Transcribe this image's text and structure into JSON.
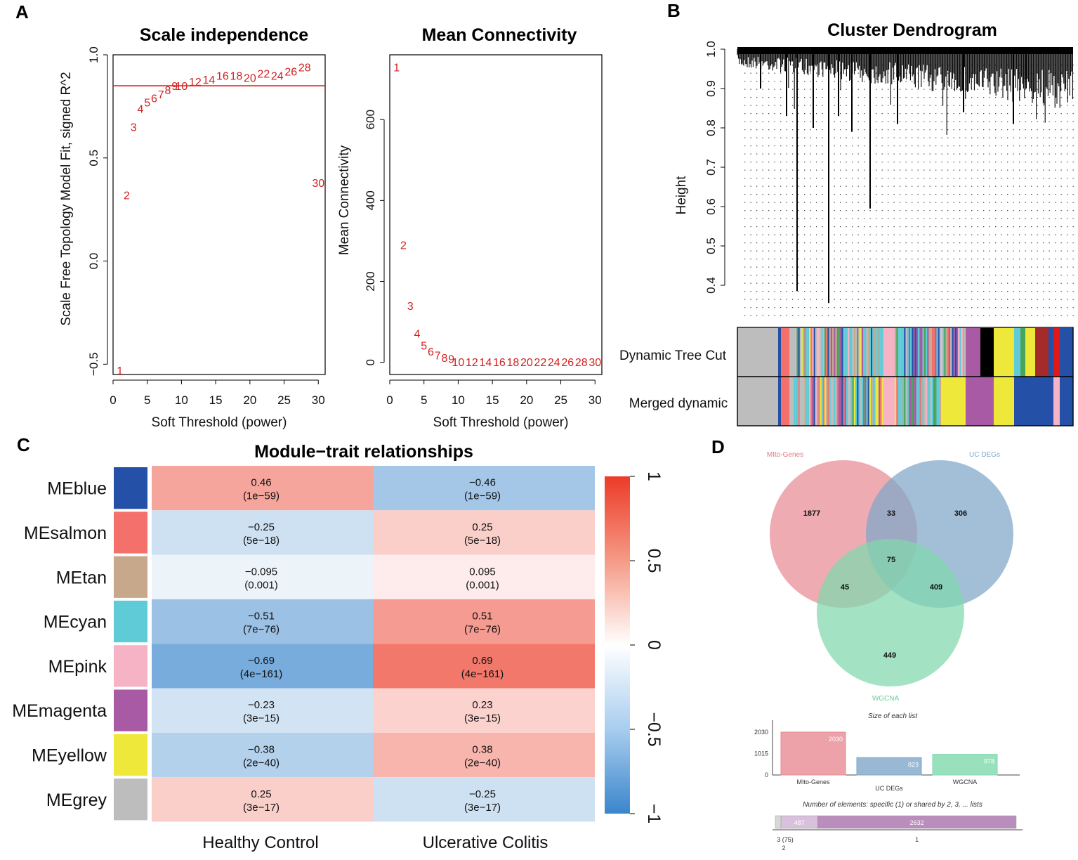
{
  "panels": {
    "a": "A",
    "b": "B",
    "c": "C",
    "d": "D"
  },
  "colors": {
    "red_line": "#e02424",
    "salmon": "#f4716b",
    "tan": "#c8a88a",
    "cyan": "#5ecbd6",
    "pink": "#f7b3c6",
    "magenta": "#a85aa5",
    "yellow": "#eee83a",
    "grey": "#bdbdbd",
    "blue": "#2450a8",
    "black": "#000000",
    "venn_mito": "#e88a94",
    "venn_uc": "#7ea6c8",
    "venn_wgcna": "#7fd8ac"
  },
  "chart_data": [
    {
      "id": "scale_independence",
      "type": "scatter",
      "title": "Scale independence",
      "xlabel": "Soft Threshold (power)",
      "ylabel": "Scale Free Topology Model Fit, signed R^2",
      "xlim": [
        0,
        31
      ],
      "ylim": [
        -0.55,
        1.0
      ],
      "xticks": [
        "0",
        "5",
        "10",
        "15",
        "20",
        "25",
        "30"
      ],
      "yticks": [
        "−0.5",
        "0.0",
        "0.5",
        "1.0"
      ],
      "hline": 0.85,
      "points": [
        {
          "x": 1,
          "y": -0.53,
          "label": "1"
        },
        {
          "x": 2,
          "y": 0.32,
          "label": "2"
        },
        {
          "x": 3,
          "y": 0.65,
          "label": "3"
        },
        {
          "x": 4,
          "y": 0.74,
          "label": "4"
        },
        {
          "x": 5,
          "y": 0.77,
          "label": "5"
        },
        {
          "x": 6,
          "y": 0.79,
          "label": "6"
        },
        {
          "x": 7,
          "y": 0.81,
          "label": "7"
        },
        {
          "x": 8,
          "y": 0.83,
          "label": "8"
        },
        {
          "x": 9,
          "y": 0.85,
          "label": "9"
        },
        {
          "x": 10,
          "y": 0.85,
          "label": "10"
        },
        {
          "x": 12,
          "y": 0.87,
          "label": "12"
        },
        {
          "x": 14,
          "y": 0.88,
          "label": "14"
        },
        {
          "x": 16,
          "y": 0.9,
          "label": "16"
        },
        {
          "x": 18,
          "y": 0.9,
          "label": "18"
        },
        {
          "x": 20,
          "y": 0.89,
          "label": "20"
        },
        {
          "x": 22,
          "y": 0.91,
          "label": "22"
        },
        {
          "x": 24,
          "y": 0.9,
          "label": "24"
        },
        {
          "x": 26,
          "y": 0.92,
          "label": "26"
        },
        {
          "x": 28,
          "y": 0.94,
          "label": "28"
        },
        {
          "x": 30,
          "y": 0.38,
          "label": "30"
        }
      ]
    },
    {
      "id": "mean_connectivity",
      "type": "scatter",
      "title": "Mean Connectivity",
      "xlabel": "Soft Threshold (power)",
      "ylabel": "Mean Connectivity",
      "xlim": [
        0,
        31
      ],
      "ylim": [
        -30,
        760
      ],
      "xticks": [
        "0",
        "5",
        "10",
        "15",
        "20",
        "25",
        "30"
      ],
      "yticks": [
        "0",
        "200",
        "400",
        "600"
      ],
      "points": [
        {
          "x": 1,
          "y": 730,
          "label": "1"
        },
        {
          "x": 2,
          "y": 290,
          "label": "2"
        },
        {
          "x": 3,
          "y": 140,
          "label": "3"
        },
        {
          "x": 4,
          "y": 72,
          "label": "4"
        },
        {
          "x": 5,
          "y": 42,
          "label": "5"
        },
        {
          "x": 6,
          "y": 27,
          "label": "6"
        },
        {
          "x": 7,
          "y": 18,
          "label": "7"
        },
        {
          "x": 8,
          "y": 12,
          "label": "8"
        },
        {
          "x": 9,
          "y": 9,
          "label": "9"
        },
        {
          "x": 10,
          "y": 1,
          "label": "10"
        },
        {
          "x": 12,
          "y": 1,
          "label": "12"
        },
        {
          "x": 14,
          "y": 1,
          "label": "14"
        },
        {
          "x": 16,
          "y": 1,
          "label": "16"
        },
        {
          "x": 18,
          "y": 1,
          "label": "18"
        },
        {
          "x": 20,
          "y": 1,
          "label": "20"
        },
        {
          "x": 22,
          "y": 1,
          "label": "22"
        },
        {
          "x": 24,
          "y": 1,
          "label": "24"
        },
        {
          "x": 26,
          "y": 1,
          "label": "26"
        },
        {
          "x": 28,
          "y": 1,
          "label": "28"
        },
        {
          "x": 30,
          "y": 1,
          "label": "30"
        }
      ]
    },
    {
      "id": "cluster_dendrogram",
      "type": "dendrogram",
      "title": "Cluster Dendrogram",
      "ylabel": "Height",
      "ylim": [
        0.3,
        1.0
      ],
      "yticks": [
        "0.4",
        "0.5",
        "0.6",
        "0.7",
        "0.8",
        "0.9",
        "1.0"
      ],
      "tracks": [
        "Dynamic Tree Cut",
        "Merged dynamic"
      ]
    },
    {
      "id": "module_trait",
      "type": "heatmap",
      "title": "Module−trait relationships",
      "columns": [
        "Healthy Control",
        "Ulcerative Colitis"
      ],
      "legend_ticks": [
        "1",
        "0.5",
        "0",
        "−0.5",
        "−1"
      ],
      "rows": [
        {
          "name": "MEblue",
          "color": "#2450a8",
          "cells": [
            {
              "v": 0.46,
              "corr": "0.46",
              "p": "(1e−59)"
            },
            {
              "v": -0.46,
              "corr": "−0.46",
              "p": "(1e−59)"
            }
          ]
        },
        {
          "name": "MEsalmon",
          "color": "#f4716b",
          "cells": [
            {
              "v": -0.25,
              "corr": "−0.25",
              "p": "(5e−18)"
            },
            {
              "v": 0.25,
              "corr": "0.25",
              "p": "(5e−18)"
            }
          ]
        },
        {
          "name": "MEtan",
          "color": "#c8a88a",
          "cells": [
            {
              "v": -0.095,
              "corr": "−0.095",
              "p": "(0.001)"
            },
            {
              "v": 0.095,
              "corr": "0.095",
              "p": "(0.001)"
            }
          ]
        },
        {
          "name": "MEcyan",
          "color": "#5ecbd6",
          "cells": [
            {
              "v": -0.51,
              "corr": "−0.51",
              "p": "(7e−76)"
            },
            {
              "v": 0.51,
              "corr": "0.51",
              "p": "(7e−76)"
            }
          ]
        },
        {
          "name": "MEpink",
          "color": "#f7b3c6",
          "cells": [
            {
              "v": -0.69,
              "corr": "−0.69",
              "p": "(4e−161)"
            },
            {
              "v": 0.69,
              "corr": "0.69",
              "p": "(4e−161)"
            }
          ]
        },
        {
          "name": "MEmagenta",
          "color": "#a85aa5",
          "cells": [
            {
              "v": -0.23,
              "corr": "−0.23",
              "p": "(3e−15)"
            },
            {
              "v": 0.23,
              "corr": "0.23",
              "p": "(3e−15)"
            }
          ]
        },
        {
          "name": "MEyellow",
          "color": "#eee83a",
          "cells": [
            {
              "v": -0.38,
              "corr": "−0.38",
              "p": "(2e−40)"
            },
            {
              "v": 0.38,
              "corr": "0.38",
              "p": "(2e−40)"
            }
          ]
        },
        {
          "name": "MEgrey",
          "color": "#bdbdbd",
          "cells": [
            {
              "v": 0.25,
              "corr": "0.25",
              "p": "(3e−17)"
            },
            {
              "v": -0.25,
              "corr": "−0.25",
              "p": "(3e−17)"
            }
          ]
        }
      ]
    },
    {
      "id": "venn",
      "type": "venn",
      "sets": [
        "MIto-Genes",
        "UC DEGs",
        "WGCNA"
      ],
      "regions": [
        {
          "key": "mito_only",
          "label": "1877"
        },
        {
          "key": "mito_uc",
          "label": "33"
        },
        {
          "key": "uc_only",
          "label": "306"
        },
        {
          "key": "all",
          "label": "75"
        },
        {
          "key": "mito_wgcna",
          "label": "45"
        },
        {
          "key": "uc_wgcna",
          "label": "409"
        },
        {
          "key": "wgcna_only",
          "label": "449"
        }
      ],
      "size_title": "Size of each list",
      "size_ticks": [
        "2030",
        "1015",
        "0"
      ],
      "sizes": [
        {
          "name": "MIto-Genes",
          "value": 2030,
          "label": "2030"
        },
        {
          "name": "UC DEGs",
          "value": 823,
          "label": "823"
        },
        {
          "name": "WGCNA",
          "value": 978,
          "label": "978"
        }
      ],
      "shared_title": "Number of elements: specific (1) or shared by 2, 3, ... lists",
      "shared": [
        {
          "key": "3",
          "value": 75,
          "label": "",
          "axis": "3 (75)"
        },
        {
          "key": "2",
          "value": 487,
          "label": "487",
          "axis": "2"
        },
        {
          "key": "1",
          "value": 2632,
          "label": "2632",
          "axis": "1"
        }
      ]
    }
  ]
}
